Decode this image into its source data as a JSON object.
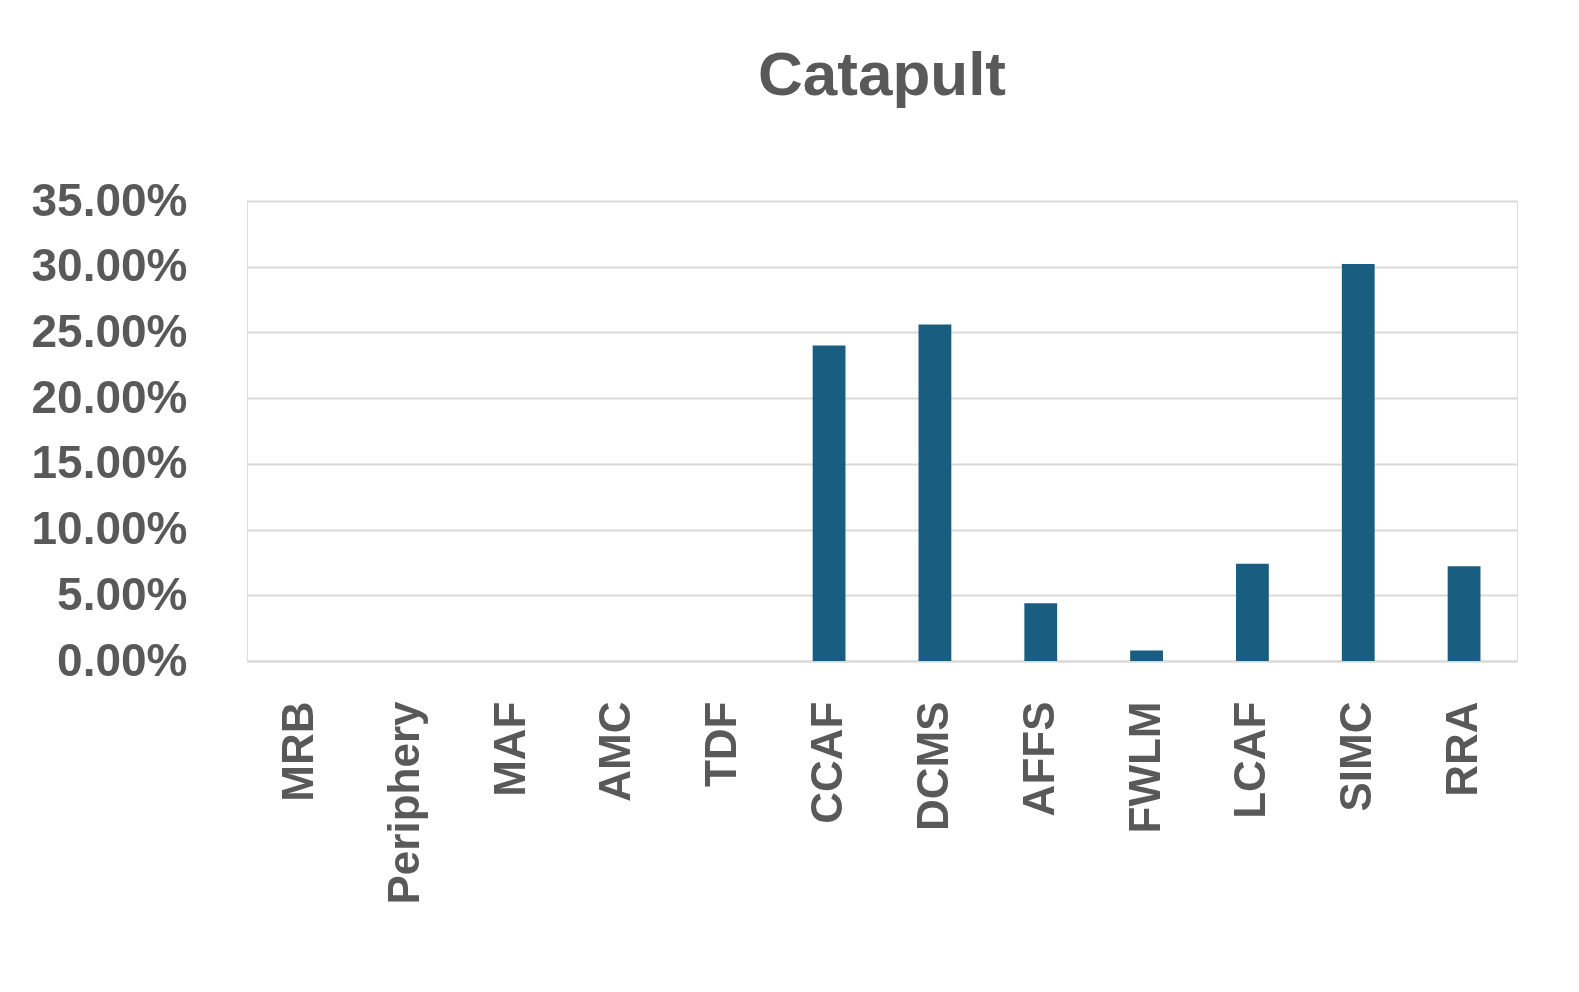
{
  "chart_data": {
    "type": "bar",
    "title": "Catapult",
    "categories": [
      "MRB",
      "Periphery",
      "MAF",
      "AMC",
      "TDF",
      "CCAF",
      "DCMS",
      "AFFS",
      "FWLM",
      "LCAF",
      "SIMC",
      "RRA"
    ],
    "values": [
      0,
      0,
      0,
      0,
      0,
      24.0,
      25.6,
      4.4,
      0.8,
      7.4,
      30.2,
      7.2
    ],
    "color": "#195e80",
    "ylim": [
      0,
      35
    ],
    "yticks": [
      {
        "value": 0,
        "label": "0.00%"
      },
      {
        "value": 5,
        "label": "5.00%"
      },
      {
        "value": 10,
        "label": "10.00%"
      },
      {
        "value": 15,
        "label": "15.00%"
      },
      {
        "value": 20,
        "label": "20.00%"
      },
      {
        "value": 25,
        "label": "25.00%"
      },
      {
        "value": 30,
        "label": "30.00%"
      },
      {
        "value": 35,
        "label": "35.00%"
      }
    ],
    "grid": "y"
  }
}
